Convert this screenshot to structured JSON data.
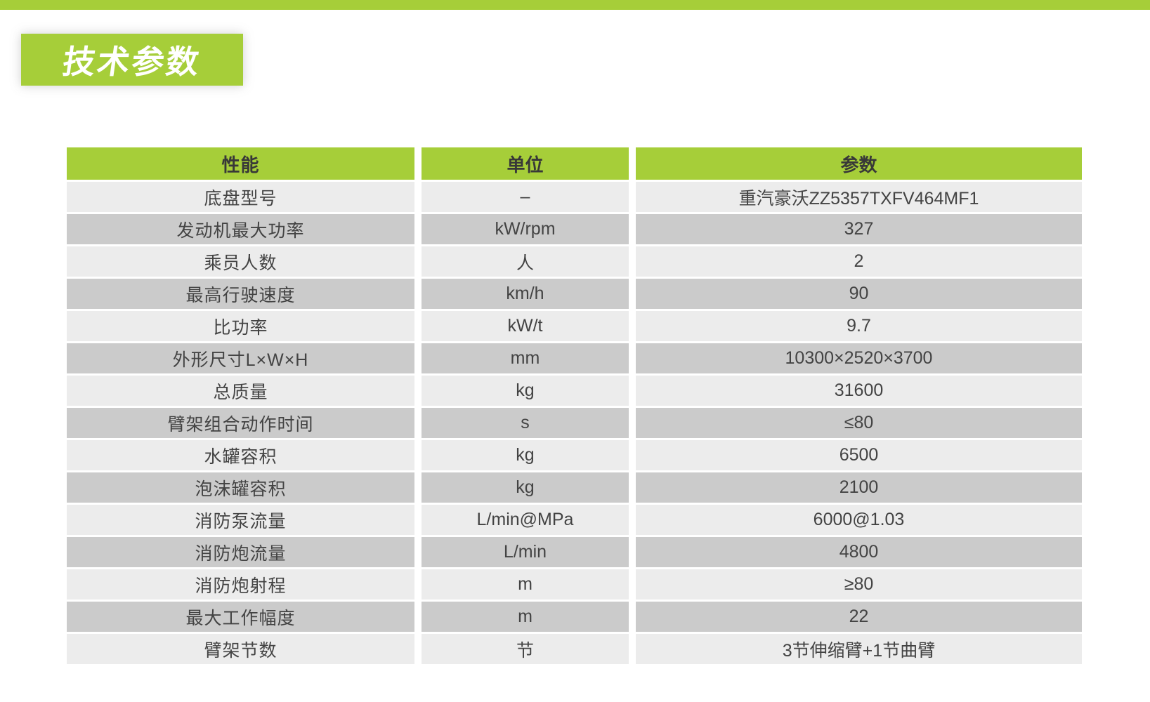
{
  "page": {
    "title": "技术参数",
    "accent_color": "#a6ce39",
    "row_color_light": "#ececec",
    "row_color_dark": "#cbcbcb"
  },
  "table": {
    "header": {
      "performance": "性能",
      "unit": "单位",
      "parameter": "参数"
    },
    "rows": [
      {
        "performance": "底盘型号",
        "unit": "–",
        "parameter": "重汽豪沃ZZ5357TXFV464MF1"
      },
      {
        "performance": "发动机最大功率",
        "unit": "kW/rpm",
        "parameter": "327"
      },
      {
        "performance": "乘员人数",
        "unit": "人",
        "parameter": "2"
      },
      {
        "performance": "最高行驶速度",
        "unit": "km/h",
        "parameter": "90"
      },
      {
        "performance": "比功率",
        "unit": "kW/t",
        "parameter": "9.7"
      },
      {
        "performance": "外形尺寸L×W×H",
        "unit": "mm",
        "parameter": "10300×2520×3700"
      },
      {
        "performance": "总质量",
        "unit": "kg",
        "parameter": "31600"
      },
      {
        "performance": "臂架组合动作时间",
        "unit": "s",
        "parameter": "≤80"
      },
      {
        "performance": "水罐容积",
        "unit": "kg",
        "parameter": "6500"
      },
      {
        "performance": "泡沫罐容积",
        "unit": "kg",
        "parameter": "2100"
      },
      {
        "performance": "消防泵流量",
        "unit": "L/min@MPa",
        "parameter": "6000@1.03"
      },
      {
        "performance": "消防炮流量",
        "unit": "L/min",
        "parameter": "4800"
      },
      {
        "performance": "消防炮射程",
        "unit": "m",
        "parameter": "≥80"
      },
      {
        "performance": "最大工作幅度",
        "unit": "m",
        "parameter": "22"
      },
      {
        "performance": "臂架节数",
        "unit": "节",
        "parameter": "3节伸缩臂+1节曲臂"
      }
    ]
  }
}
